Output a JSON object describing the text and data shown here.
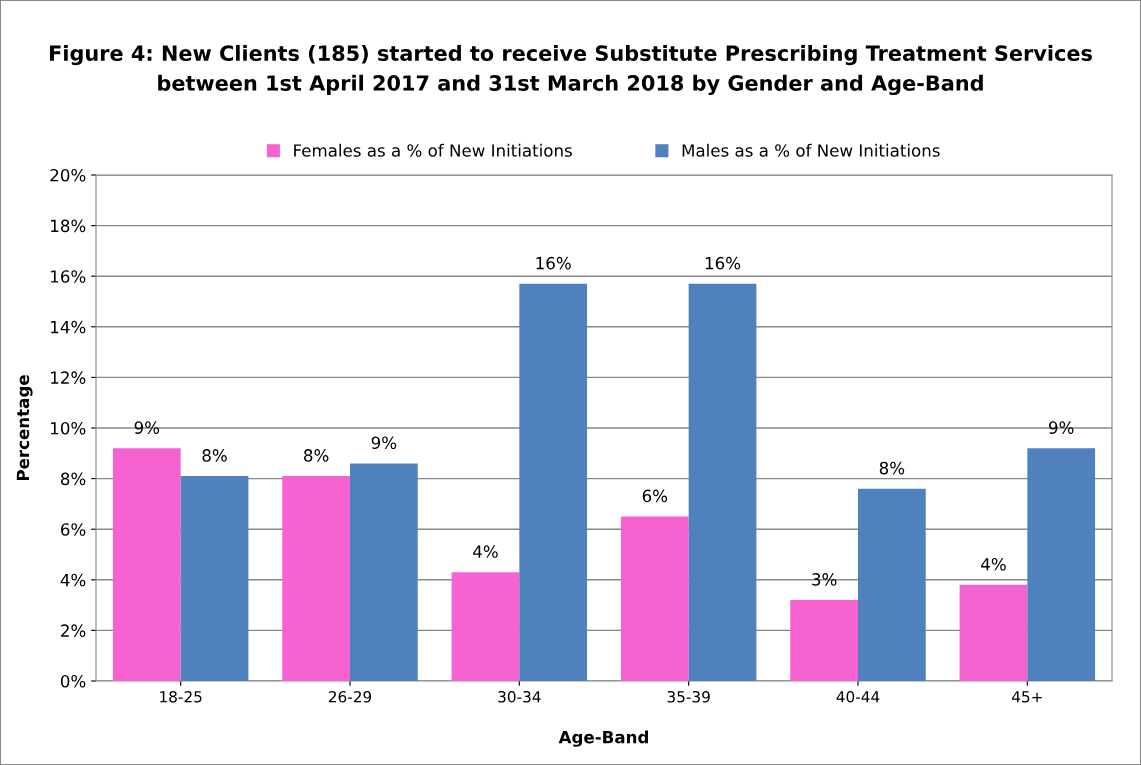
{
  "chart_data": {
    "type": "bar",
    "title": "Figure 4: New Clients (185) started to receive Substitute Prescribing Treatment Services\nbetween 1st April 2017 and 31st March 2018 by Gender and Age-Band",
    "xlabel": "Age-Band",
    "ylabel": "Percentage",
    "categories": [
      "18-25",
      "26-29",
      "30-34",
      "35-39",
      "40-44",
      "45+"
    ],
    "series": [
      {
        "name": "Females as a % of New Initiations",
        "color": "#f662d0",
        "values": [
          9.2,
          8.1,
          4.3,
          6.5,
          3.2,
          3.8
        ],
        "value_labels": [
          "9%",
          "8%",
          "4%",
          "6%",
          "3%",
          "4%"
        ]
      },
      {
        "name": "Males as a % of New Initiations",
        "color": "#4f81bd",
        "values": [
          8.1,
          8.6,
          15.7,
          15.7,
          7.6,
          9.2
        ],
        "value_labels": [
          "8%",
          "9%",
          "16%",
          "16%",
          "8%",
          "9%"
        ]
      }
    ],
    "ylim": [
      0,
      20
    ],
    "yticks": [
      {
        "value": 0,
        "label": "0%"
      },
      {
        "value": 2,
        "label": "2%"
      },
      {
        "value": 4,
        "label": "4%"
      },
      {
        "value": 6,
        "label": "6%"
      },
      {
        "value": 8,
        "label": "8%"
      },
      {
        "value": 10,
        "label": "10%"
      },
      {
        "value": 12,
        "label": "12%"
      },
      {
        "value": 14,
        "label": "14%"
      },
      {
        "value": 16,
        "label": "16%"
      },
      {
        "value": 18,
        "label": "18%"
      },
      {
        "value": 20,
        "label": "20%"
      }
    ],
    "grid": "y",
    "legend": "top"
  }
}
